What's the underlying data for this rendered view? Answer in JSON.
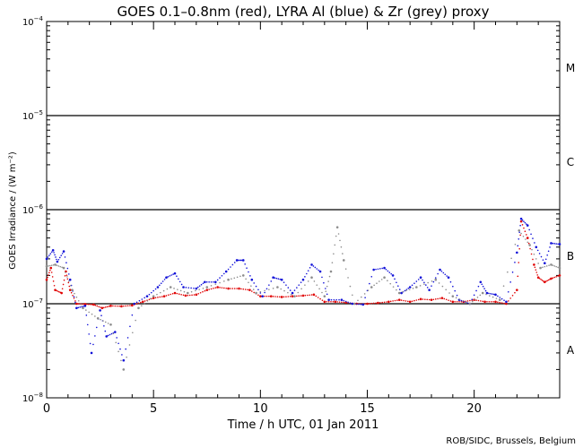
{
  "chart_data": {
    "type": "scatter",
    "title": "GOES 0.1–0.8nm (red), LYRA Al (blue) & Zr (grey) proxy",
    "xlabel": "Time / h UTC, 01 Jan 2011",
    "ylabel": "GOES Irradiance / (W m⁻²)",
    "credit": "ROB/SIDC, Brussels, Belgium",
    "xlim": [
      0,
      24
    ],
    "ylim": [
      1e-08,
      0.0001
    ],
    "yscale": "log",
    "x_ticks": [
      0,
      5,
      10,
      15,
      20
    ],
    "x_tick_labels": [
      "0",
      "5",
      "10",
      "15",
      "20"
    ],
    "y_ticks": [
      1e-08,
      1e-07,
      1e-06,
      1e-05,
      0.0001
    ],
    "y_tick_labels": [
      {
        "base": "10",
        "exp": "−8"
      },
      {
        "base": "10",
        "exp": "−7"
      },
      {
        "base": "10",
        "exp": "−6"
      },
      {
        "base": "10",
        "exp": "−5"
      },
      {
        "base": "10",
        "exp": "−4"
      }
    ],
    "flare_class_lines": [
      1e-07,
      1e-06,
      1e-05
    ],
    "flare_classes": [
      {
        "label": "A",
        "y": 3.2e-08
      },
      {
        "label": "B",
        "y": 3.2e-07
      },
      {
        "label": "C",
        "y": 3.2e-06
      },
      {
        "label": "M",
        "y": 3.2e-05
      }
    ],
    "series": [
      {
        "name": "GOES 0.1–0.8nm",
        "color": "#e00000",
        "points": [
          [
            0,
            1.8e-07
          ],
          [
            0.2,
            2.4e-07
          ],
          [
            0.4,
            1.4e-07
          ],
          [
            0.7,
            1.3e-07
          ],
          [
            0.9,
            2.2e-07
          ],
          [
            1.1,
            1.4e-07
          ],
          [
            1.4,
            1e-07
          ],
          [
            1.8,
            9.9e-08
          ],
          [
            2.2,
            9.8e-08
          ],
          [
            2.6,
            9e-08
          ],
          [
            3.0,
            9.5e-08
          ],
          [
            3.5,
            9.4e-08
          ],
          [
            4.0,
            9.6e-08
          ],
          [
            4.5,
            1.05e-07
          ],
          [
            5.0,
            1.15e-07
          ],
          [
            5.5,
            1.2e-07
          ],
          [
            6.0,
            1.3e-07
          ],
          [
            6.5,
            1.22e-07
          ],
          [
            7.0,
            1.25e-07
          ],
          [
            7.5,
            1.4e-07
          ],
          [
            8.0,
            1.5e-07
          ],
          [
            8.5,
            1.45e-07
          ],
          [
            9.0,
            1.45e-07
          ],
          [
            9.5,
            1.4e-07
          ],
          [
            10.0,
            1.2e-07
          ],
          [
            10.5,
            1.2e-07
          ],
          [
            11.0,
            1.18e-07
          ],
          [
            11.5,
            1.2e-07
          ],
          [
            12.0,
            1.22e-07
          ],
          [
            12.5,
            1.25e-07
          ],
          [
            13.0,
            1.05e-07
          ],
          [
            13.5,
            1.05e-07
          ],
          [
            14.0,
            1.03e-07
          ],
          [
            14.5,
            1e-07
          ],
          [
            15.0,
            1e-07
          ],
          [
            15.5,
            1.02e-07
          ],
          [
            16.0,
            1.05e-07
          ],
          [
            16.5,
            1.1e-07
          ],
          [
            17.0,
            1.05e-07
          ],
          [
            17.5,
            1.12e-07
          ],
          [
            18.0,
            1.1e-07
          ],
          [
            18.5,
            1.15e-07
          ],
          [
            19.0,
            1.05e-07
          ],
          [
            19.5,
            1.05e-07
          ],
          [
            20.0,
            1.1e-07
          ],
          [
            20.5,
            1.05e-07
          ],
          [
            21.0,
            1.05e-07
          ],
          [
            21.5,
            1e-07
          ],
          [
            22.0,
            1.4e-07
          ],
          [
            22.2,
            7.5e-07
          ],
          [
            22.5,
            5e-07
          ],
          [
            22.8,
            2.6e-07
          ],
          [
            23.0,
            1.9e-07
          ],
          [
            23.3,
            1.7e-07
          ],
          [
            23.6,
            1.85e-07
          ],
          [
            24.0,
            2e-07
          ]
        ]
      },
      {
        "name": "LYRA Al proxy",
        "color": "#1010d8",
        "points": [
          [
            0,
            3e-07
          ],
          [
            0.3,
            3.7e-07
          ],
          [
            0.5,
            2.8e-07
          ],
          [
            0.8,
            3.6e-07
          ],
          [
            1.1,
            1.8e-07
          ],
          [
            1.4,
            9e-08
          ],
          [
            1.8,
            9.5e-08
          ],
          [
            2.1,
            3e-08
          ],
          [
            2.5,
            8.5e-08
          ],
          [
            2.8,
            4.5e-08
          ],
          [
            3.2,
            5e-08
          ],
          [
            3.6,
            2.5e-08
          ],
          [
            4.1,
            1e-07
          ],
          [
            4.7,
            1.2e-07
          ],
          [
            5.2,
            1.5e-07
          ],
          [
            5.6,
            1.9e-07
          ],
          [
            6.0,
            2.1e-07
          ],
          [
            6.4,
            1.5e-07
          ],
          [
            7.0,
            1.45e-07
          ],
          [
            7.4,
            1.7e-07
          ],
          [
            7.9,
            1.7e-07
          ],
          [
            8.4,
            2.2e-07
          ],
          [
            8.9,
            2.9e-07
          ],
          [
            9.2,
            2.9e-07
          ],
          [
            9.6,
            1.8e-07
          ],
          [
            10.1,
            1.2e-07
          ],
          [
            10.6,
            1.9e-07
          ],
          [
            11.0,
            1.8e-07
          ],
          [
            11.5,
            1.3e-07
          ],
          [
            12.0,
            1.8e-07
          ],
          [
            12.4,
            2.6e-07
          ],
          [
            12.8,
            2.2e-07
          ],
          [
            13.2,
            1.1e-07
          ],
          [
            13.8,
            1.1e-07
          ],
          [
            14.3,
            1e-07
          ],
          [
            14.8,
            9.8e-08
          ],
          [
            15.3,
            2.3e-07
          ],
          [
            15.8,
            2.4e-07
          ],
          [
            16.2,
            2e-07
          ],
          [
            16.6,
            1.3e-07
          ],
          [
            17.0,
            1.5e-07
          ],
          [
            17.5,
            1.9e-07
          ],
          [
            17.9,
            1.4e-07
          ],
          [
            18.4,
            2.3e-07
          ],
          [
            18.8,
            1.9e-07
          ],
          [
            19.3,
            1.1e-07
          ],
          [
            19.8,
            1e-07
          ],
          [
            20.3,
            1.7e-07
          ],
          [
            20.6,
            1.3e-07
          ],
          [
            21.0,
            1.25e-07
          ],
          [
            21.5,
            1.05e-07
          ],
          [
            22.0,
            3.5e-07
          ],
          [
            22.2,
            8e-07
          ],
          [
            22.5,
            6.8e-07
          ],
          [
            22.9,
            4e-07
          ],
          [
            23.3,
            2.7e-07
          ],
          [
            23.6,
            4.4e-07
          ],
          [
            24.0,
            4.3e-07
          ]
        ]
      },
      {
        "name": "LYRA Zr proxy",
        "color": "#8c8c8c",
        "points": [
          [
            0,
            2.5e-07
          ],
          [
            0.4,
            2.6e-07
          ],
          [
            0.8,
            2.4e-07
          ],
          [
            1.2,
            1.4e-07
          ],
          [
            1.7,
            9e-08
          ],
          [
            2.4,
            7e-08
          ],
          [
            3.0,
            6e-08
          ],
          [
            3.6,
            2e-08
          ],
          [
            4.3,
            9e-08
          ],
          [
            5.0,
            1.2e-07
          ],
          [
            5.8,
            1.5e-07
          ],
          [
            6.6,
            1.3e-07
          ],
          [
            7.5,
            1.5e-07
          ],
          [
            8.5,
            1.8e-07
          ],
          [
            9.2,
            2e-07
          ],
          [
            9.8,
            1.3e-07
          ],
          [
            10.8,
            1.5e-07
          ],
          [
            11.6,
            1.2e-07
          ],
          [
            12.4,
            1.9e-07
          ],
          [
            13.0,
            1.2e-07
          ],
          [
            13.3,
            2.2e-07
          ],
          [
            13.6,
            6.5e-07
          ],
          [
            13.9,
            2.9e-07
          ],
          [
            14.4,
            1e-07
          ],
          [
            15.2,
            1.5e-07
          ],
          [
            15.8,
            1.9e-07
          ],
          [
            16.5,
            1.3e-07
          ],
          [
            17.3,
            1.5e-07
          ],
          [
            18.2,
            1.8e-07
          ],
          [
            19.0,
            1.2e-07
          ],
          [
            19.8,
            1e-07
          ],
          [
            20.4,
            1.3e-07
          ],
          [
            21.2,
            1.1e-07
          ],
          [
            22.1,
            6e-07
          ],
          [
            22.6,
            4.2e-07
          ],
          [
            23.1,
            2.4e-07
          ],
          [
            23.6,
            2.6e-07
          ],
          [
            24.0,
            2.4e-07
          ]
        ]
      }
    ]
  }
}
